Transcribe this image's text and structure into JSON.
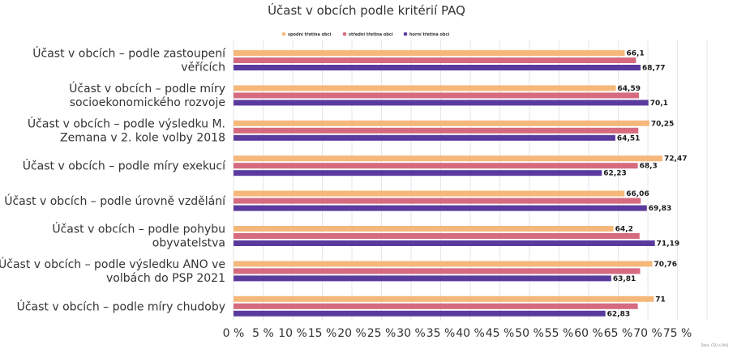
{
  "chart_data": {
    "type": "bar",
    "orientation": "horizontal",
    "title": "Účast v obcích podle kritérií PAQ",
    "credit": "Data: ČSÚ a PAQ",
    "categories": [
      [
        "Účast v obcích – podle zastoupení",
        "věřících"
      ],
      [
        "Účast v obcích – podle míry",
        "socioekonomického rozvoje"
      ],
      [
        "Účast v obcích – podle výsledku M.",
        "Zemana v 2. kole volby 2018"
      ],
      [
        "Účast v obcích – podle míry exekucí"
      ],
      [
        "Účast v obcích – podle úrovně vzdělání"
      ],
      [
        "Účast v obcích – podle pohybu",
        "obyvatelstva"
      ],
      [
        "Účast v obcích – podle výsledku ANO ve",
        "volbách do PSP 2021"
      ],
      [
        "Účast v obcích – podle míry chudoby"
      ]
    ],
    "series": [
      {
        "name": "spodní třetina obcí",
        "color": "#f5b87a",
        "values": [
          66.1,
          64.59,
          70.25,
          72.47,
          66.06,
          64.2,
          70.76,
          71
        ],
        "labels": [
          "66,1",
          "64,59",
          "70,25",
          "72,47",
          "66,06",
          "64,2",
          "70,76",
          "71"
        ]
      },
      {
        "name": "střední třetina obcí",
        "color": "#d66a7f",
        "values": [
          68.0,
          68.5,
          68.4,
          68.3,
          68.8,
          68.6,
          68.7,
          68.3
        ],
        "labels": [
          "",
          "",
          "",
          "68,3",
          "",
          "",
          "",
          ""
        ]
      },
      {
        "name": "horní třetina obcí",
        "color": "#5b3a9e",
        "values": [
          68.77,
          70.1,
          64.51,
          62.23,
          69.83,
          71.19,
          63.81,
          62.83
        ],
        "labels": [
          "68,77",
          "70,1",
          "64,51",
          "62,23",
          "69,83",
          "71,19",
          "63,81",
          "62,83"
        ]
      }
    ],
    "xaxis": {
      "min": 0,
      "max": 80,
      "step": 5,
      "tick_labels": [
        "0 %",
        "5 %",
        "10 %",
        "15 %",
        "20 %",
        "25 %",
        "30 %",
        "35 %",
        "40 %",
        "45 %",
        "50 %",
        "55 %",
        "60 %",
        "65 %",
        "70 %",
        "75 %"
      ]
    },
    "legend_position": "top",
    "grid": true
  }
}
